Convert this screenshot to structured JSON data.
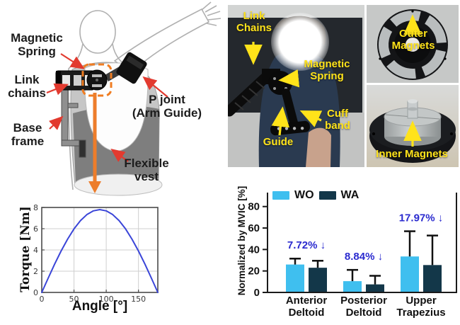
{
  "diagram": {
    "labels": {
      "magnetic_spring": "Magnetic\nSpring",
      "link_chains": "Link\nchains",
      "base_frame": "Base\nframe",
      "p_joint": "P joint\n(Arm Guide)",
      "flexible_vest": "Flexible\nvest"
    },
    "colors": {
      "highlight_orange": "#F07D22",
      "arrow_red": "#E23A2F"
    }
  },
  "photo": {
    "labels": {
      "link_chains": "Link\nChains",
      "magnetic_spring": "Magnetic\nSpring",
      "guide": "Guide",
      "cuff_band": "Cuff\nband",
      "outer_magnets": "Outer\nMagnets",
      "inner_magnets": "Inner Magnets"
    },
    "label_color": "#FFE31A"
  },
  "chart_data": [
    {
      "type": "line",
      "xlabel": "Angle [°]",
      "ylabel": "Torque [Nm]",
      "x": [
        0,
        10,
        20,
        30,
        40,
        50,
        60,
        70,
        80,
        90,
        100,
        110,
        120,
        130,
        140,
        150,
        160,
        170,
        180
      ],
      "y": [
        0,
        1.35,
        2.67,
        3.9,
        5.01,
        5.98,
        6.76,
        7.33,
        7.68,
        7.8,
        7.68,
        7.33,
        6.76,
        5.98,
        5.01,
        3.9,
        2.67,
        1.35,
        0
      ],
      "xlim": [
        0,
        180
      ],
      "ylim": [
        0,
        8
      ],
      "x_ticks": [
        0,
        50,
        100,
        150
      ],
      "y_ticks": [
        0,
        2,
        4,
        6,
        8
      ],
      "line_color": "#3A45D8",
      "grid": true
    },
    {
      "type": "bar",
      "ylabel": "Normalized by MVIC [%]",
      "categories": [
        "Anterior\nDeltoid",
        "Posterior\nDeltoid",
        "Upper\nTrapezius"
      ],
      "series": [
        {
          "name": "WO",
          "color": "#3FBFEF",
          "values": [
            26,
            10.5,
            33.5
          ],
          "errors_up": [
            5.5,
            10.5,
            23.5
          ]
        },
        {
          "name": "WA",
          "color": "#133749",
          "values": [
            23,
            7.5,
            25.5
          ],
          "errors_up": [
            6.5,
            8,
            27.5
          ]
        }
      ],
      "annotations": [
        "7.72% ↓",
        "8.84% ↓",
        "17.97% ↓"
      ],
      "annotation_color": "#2B2BCF",
      "y_ticks": [
        0,
        20,
        40,
        60,
        80
      ],
      "ylim": [
        0,
        93
      ],
      "legend_position": "top-left",
      "grid": false
    }
  ]
}
